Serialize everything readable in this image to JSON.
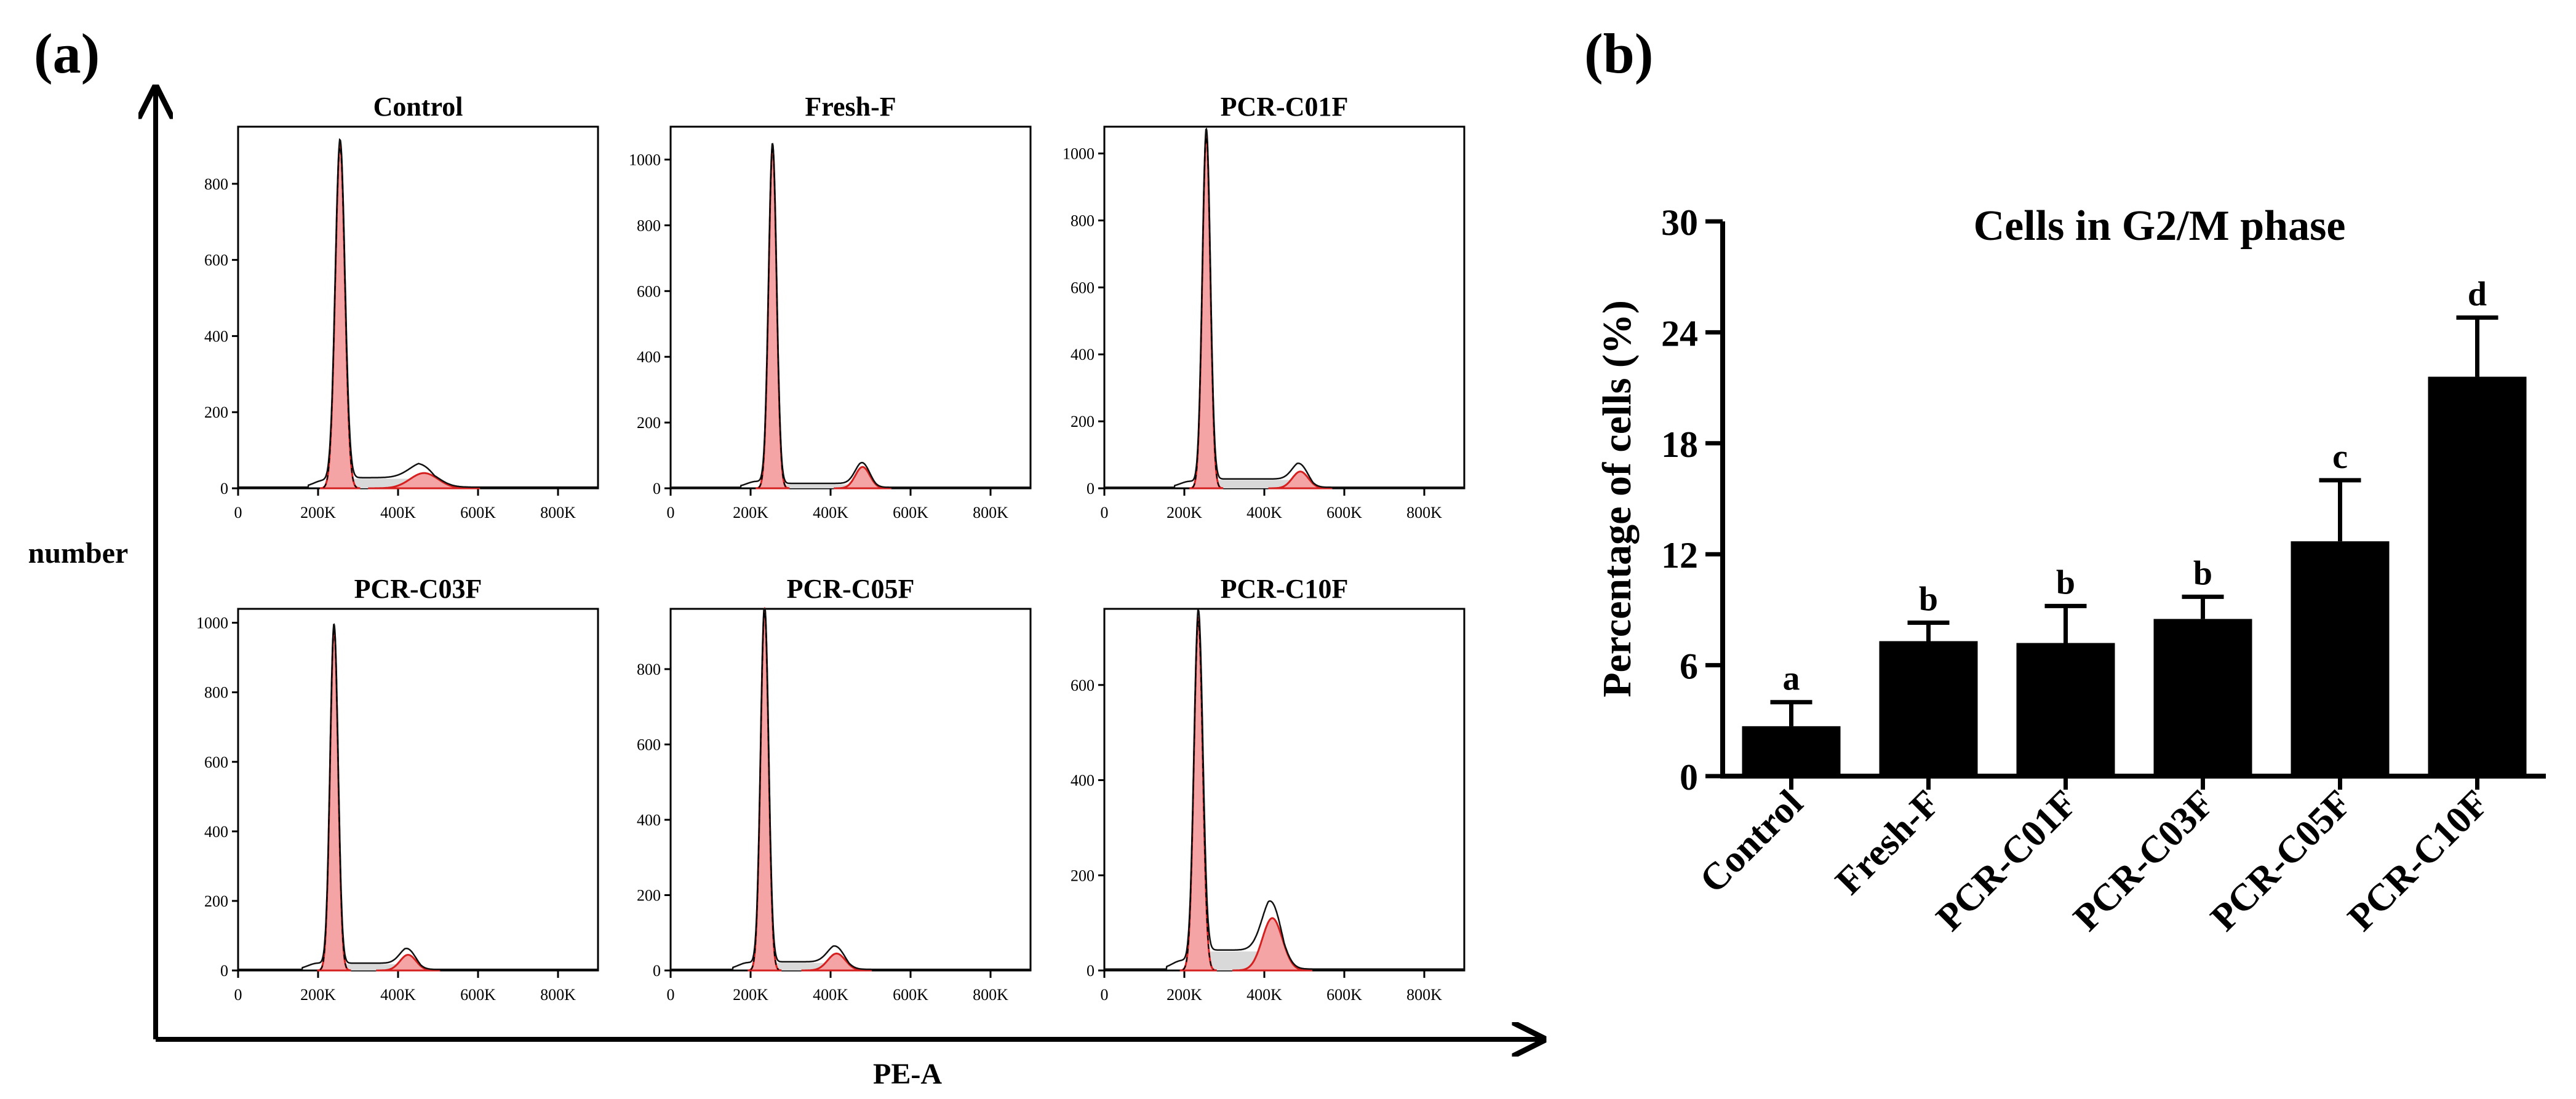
{
  "figure": {
    "panel_a_label": "(a)",
    "panel_b_label": "(b)",
    "y_axis_label": "number",
    "x_axis_label": "PE-A"
  },
  "chart_data": [
    {
      "type": "histogram",
      "panel": "a",
      "xlabel": "PE-A",
      "ylabel": "number",
      "x_ticks": [
        "0",
        "200K",
        "400K",
        "600K",
        "800K"
      ],
      "xlim": [
        0,
        900
      ],
      "x_unit": "K",
      "subplots": [
        {
          "title": "Control",
          "ymax": 950,
          "y_ticks": [
            0,
            200,
            400,
            600,
            800
          ],
          "g1_x": 255,
          "g1_height": 905,
          "g1_width": 12,
          "g2_x": 465,
          "g2_height": 40,
          "g2_width": 35,
          "s_level": 25
        },
        {
          "title": "Fresh-F",
          "ymax": 1100,
          "y_ticks": [
            0,
            200,
            400,
            600,
            800,
            1000
          ],
          "g1_x": 255,
          "g1_height": 1040,
          "g1_width": 10,
          "g2_x": 480,
          "g2_height": 65,
          "g2_width": 18,
          "s_level": 12
        },
        {
          "title": "PCR-C01F",
          "ymax": 1080,
          "y_ticks": [
            0,
            200,
            400,
            600,
            800,
            1000
          ],
          "g1_x": 255,
          "g1_height": 1060,
          "g1_width": 10,
          "g2_x": 490,
          "g2_height": 50,
          "g2_width": 20,
          "s_level": 25
        },
        {
          "title": "PCR-C03F",
          "ymax": 1040,
          "y_ticks": [
            0,
            200,
            400,
            600,
            800,
            1000
          ],
          "g1_x": 240,
          "g1_height": 985,
          "g1_width": 10,
          "g2_x": 425,
          "g2_height": 45,
          "g2_width": 20,
          "s_level": 18
        },
        {
          "title": "PCR-C05F",
          "ymax": 960,
          "y_ticks": [
            0,
            200,
            400,
            600,
            800
          ],
          "g1_x": 235,
          "g1_height": 960,
          "g1_width": 10,
          "g2_x": 415,
          "g2_height": 45,
          "g2_width": 22,
          "s_level": 20
        },
        {
          "title": "PCR-C10F",
          "ymax": 760,
          "y_ticks": [
            0,
            200,
            400,
            600
          ],
          "g1_x": 235,
          "g1_height": 740,
          "g1_width": 11,
          "g2_x": 420,
          "g2_height": 110,
          "g2_width": 25,
          "s_level": 40
        }
      ]
    },
    {
      "type": "bar",
      "panel": "b",
      "title": "Cells in G2/M phase",
      "xlabel": "",
      "ylabel": "Percentage of cells (%)",
      "ylim": [
        0,
        30
      ],
      "y_ticks": [
        0,
        6,
        12,
        18,
        24,
        30
      ],
      "categories": [
        "Control",
        "Fresh-F",
        "PCR-C01F",
        "PCR-C03F",
        "PCR-C05F",
        "PCR-C10F"
      ],
      "values": [
        2.7,
        7.3,
        7.2,
        8.5,
        12.7,
        21.6
      ],
      "errors": [
        1.3,
        1.0,
        2.0,
        1.2,
        3.3,
        3.2
      ],
      "significance_letters": [
        "a",
        "b",
        "b",
        "b",
        "c",
        "d"
      ]
    }
  ]
}
